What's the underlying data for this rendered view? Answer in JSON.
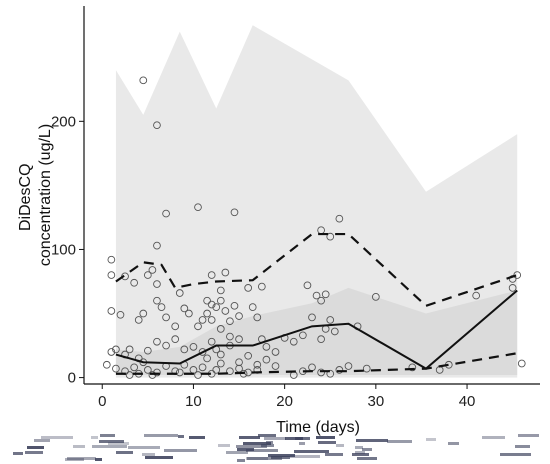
{
  "chart_data": {
    "type": "scatter",
    "title": "",
    "xlabel": "Time (days)",
    "ylabel_lines": [
      "DiDesCQ",
      "concentration (ug/L)"
    ],
    "xlim": [
      -2,
      48
    ],
    "ylim": [
      -5,
      290
    ],
    "x_ticks": [
      0,
      10,
      20,
      30,
      40
    ],
    "y_ticks": [
      0,
      100,
      200
    ],
    "grid": false,
    "legend": "none",
    "colors": {
      "outer_band": "#e9e9e9",
      "inner_band": "#d6d6d6",
      "median_line": "#111111",
      "percentile_lines": "#111111",
      "points": "#555555"
    },
    "bands": [
      {
        "name": "outer",
        "upper": [
          [
            1.5,
            240
          ],
          [
            4.5,
            205
          ],
          [
            8.5,
            270
          ],
          [
            12.5,
            210
          ],
          [
            16.5,
            275
          ],
          [
            27,
            232
          ],
          [
            35.5,
            145
          ],
          [
            45.5,
            190
          ]
        ],
        "lower": [
          [
            1.5,
            0
          ],
          [
            45.5,
            0
          ]
        ]
      },
      {
        "name": "inner",
        "upper": [
          [
            1.5,
            22
          ],
          [
            4.5,
            20
          ],
          [
            8.5,
            24
          ],
          [
            12.5,
            40
          ],
          [
            16.5,
            48
          ],
          [
            23,
            58
          ],
          [
            27,
            70
          ],
          [
            35.5,
            50
          ],
          [
            45.5,
            68
          ]
        ],
        "lower": [
          [
            1.5,
            2
          ],
          [
            45.5,
            2
          ]
        ]
      }
    ],
    "series": [
      {
        "id": "median",
        "style": "solid",
        "points": [
          [
            1.5,
            18
          ],
          [
            4.5,
            12
          ],
          [
            8.5,
            11
          ],
          [
            12.5,
            25
          ],
          [
            16.5,
            25
          ],
          [
            23,
            40
          ],
          [
            27,
            42
          ],
          [
            35.5,
            7
          ],
          [
            45.5,
            68
          ]
        ]
      },
      {
        "id": "p95",
        "style": "dashed",
        "points": [
          [
            1.5,
            75
          ],
          [
            4.5,
            90
          ],
          [
            6.5,
            88
          ],
          [
            8,
            70
          ],
          [
            10,
            73
          ],
          [
            12.5,
            75
          ],
          [
            16.5,
            76
          ],
          [
            23,
            112
          ],
          [
            27,
            112
          ],
          [
            35.5,
            56
          ],
          [
            45.5,
            80
          ]
        ]
      },
      {
        "id": "p5",
        "style": "dashed",
        "points": [
          [
            1.5,
            3
          ],
          [
            4.5,
            3
          ],
          [
            8.5,
            3
          ],
          [
            12.5,
            3
          ],
          [
            16.5,
            4
          ],
          [
            23,
            5
          ],
          [
            27,
            5
          ],
          [
            35.5,
            7
          ],
          [
            45.5,
            19
          ]
        ]
      }
    ],
    "scatter": [
      [
        4.5,
        232
      ],
      [
        6,
        197
      ],
      [
        7,
        128
      ],
      [
        10.5,
        133
      ],
      [
        14.5,
        129
      ],
      [
        26,
        124
      ],
      [
        24,
        115
      ],
      [
        25,
        110
      ],
      [
        1,
        92
      ],
      [
        1,
        80
      ],
      [
        5.5,
        84
      ],
      [
        6,
        103
      ],
      [
        5,
        80
      ],
      [
        2.5,
        79
      ],
      [
        3.5,
        74
      ],
      [
        12,
        80
      ],
      [
        13.5,
        82
      ],
      [
        6,
        73
      ],
      [
        13,
        68
      ],
      [
        16,
        70
      ],
      [
        17.5,
        71
      ],
      [
        22.5,
        72
      ],
      [
        23.5,
        64
      ],
      [
        24,
        60
      ],
      [
        24.5,
        65
      ],
      [
        30,
        63
      ],
      [
        41,
        64
      ],
      [
        45,
        70
      ],
      [
        45.5,
        80
      ],
      [
        45,
        77
      ],
      [
        9,
        54
      ],
      [
        8.5,
        66
      ],
      [
        1,
        52
      ],
      [
        2,
        49
      ],
      [
        4,
        45
      ],
      [
        4.5,
        50
      ],
      [
        6,
        60
      ],
      [
        6.5,
        55
      ],
      [
        7,
        47
      ],
      [
        8,
        40
      ],
      [
        9.5,
        50
      ],
      [
        10.5,
        40
      ],
      [
        11,
        45
      ],
      [
        11.5,
        50
      ],
      [
        12,
        45
      ],
      [
        12.5,
        55
      ],
      [
        13,
        60
      ],
      [
        13.5,
        52
      ],
      [
        14,
        44
      ],
      [
        14.5,
        56
      ],
      [
        15,
        48
      ],
      [
        16.5,
        55
      ],
      [
        17,
        47
      ],
      [
        11.5,
        60
      ],
      [
        12,
        57
      ],
      [
        13,
        38
      ],
      [
        14,
        32
      ],
      [
        15,
        30
      ],
      [
        17.5,
        30
      ],
      [
        18,
        24
      ],
      [
        19,
        20
      ],
      [
        20,
        31
      ],
      [
        21,
        28
      ],
      [
        22,
        33
      ],
      [
        23,
        47
      ],
      [
        24.5,
        38
      ],
      [
        25,
        45
      ],
      [
        25.5,
        36
      ],
      [
        28,
        40
      ],
      [
        24,
        30
      ],
      [
        1,
        20
      ],
      [
        1.5,
        22
      ],
      [
        2.5,
        18
      ],
      [
        3,
        22
      ],
      [
        4,
        15
      ],
      [
        5,
        21
      ],
      [
        6,
        28
      ],
      [
        7,
        25
      ],
      [
        8,
        30
      ],
      [
        9,
        22
      ],
      [
        10,
        24
      ],
      [
        11,
        20
      ],
      [
        11.5,
        15
      ],
      [
        12,
        28
      ],
      [
        12.5,
        22
      ],
      [
        13,
        18
      ],
      [
        14,
        25
      ],
      [
        15,
        12
      ],
      [
        16,
        17
      ],
      [
        17,
        10
      ],
      [
        18,
        14
      ],
      [
        0.5,
        10
      ],
      [
        1.5,
        7
      ],
      [
        2.5,
        5
      ],
      [
        3.5,
        8
      ],
      [
        4,
        3
      ],
      [
        4.5,
        12
      ],
      [
        5,
        6
      ],
      [
        6,
        4
      ],
      [
        7,
        9
      ],
      [
        8,
        5
      ],
      [
        9,
        10
      ],
      [
        10,
        6
      ],
      [
        11,
        8
      ],
      [
        12,
        3
      ],
      [
        13,
        11
      ],
      [
        14,
        5
      ],
      [
        15,
        7
      ],
      [
        16,
        4
      ],
      [
        17,
        6
      ],
      [
        19,
        9
      ],
      [
        22,
        5
      ],
      [
        23,
        8
      ],
      [
        24,
        4
      ],
      [
        26,
        6
      ],
      [
        27,
        9
      ],
      [
        29,
        7
      ],
      [
        34,
        8
      ],
      [
        37,
        6
      ],
      [
        46,
        11
      ],
      [
        38,
        10
      ],
      [
        3,
        2
      ],
      [
        5.5,
        2
      ],
      [
        8.5,
        4
      ],
      [
        10.5,
        2
      ],
      [
        12.5,
        6
      ],
      [
        15.5,
        3
      ],
      [
        21,
        2
      ],
      [
        25,
        3
      ]
    ]
  }
}
